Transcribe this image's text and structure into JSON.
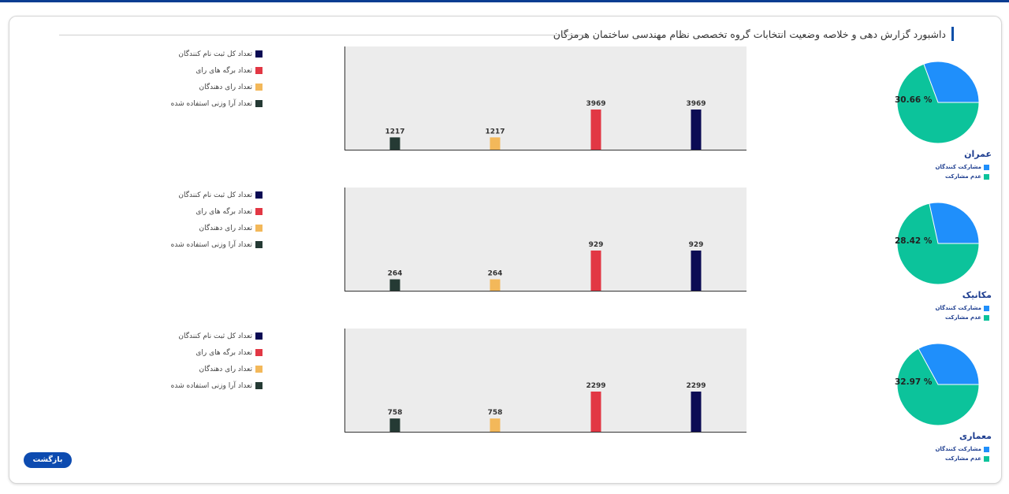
{
  "page": {
    "title": "داشبورد گزارش دهی و خلاصه وضعیت انتخابات گروه تخصصی نظام مهندسی ساختمان هرمزگان",
    "back_label": "بازگشت"
  },
  "colors": {
    "registered": "#0b0b54",
    "ballots": "#e23744",
    "voters": "#f3b85a",
    "weighted": "#253a34",
    "participants": "#1f8ffb",
    "non_participants": "#0cc39b",
    "plot_bg": "#ececec"
  },
  "legend_labels": {
    "registered": "تعداد کل ثبت نام کنندگان",
    "ballots": "تعداد برگه های رای",
    "voters": "تعداد رای دهندگان",
    "weighted": "تعداد آرا وزنی استفاده شده"
  },
  "pie_legend": {
    "participants": "مشارکت کنندگان",
    "non_participants": "عدم مشارکت"
  },
  "groups": [
    {
      "name": "عمران",
      "participation_label": "30.66 %",
      "participation_pct": 30.66,
      "bars": {
        "weighted": 1217,
        "voters": 1217,
        "ballots": 3969,
        "registered": 3969
      },
      "bar_labels": [
        "1217",
        "1217",
        "3969",
        "3969"
      ]
    },
    {
      "name": "مکانیک",
      "participation_label": "28.42 %",
      "participation_pct": 28.42,
      "bars": {
        "weighted": 264,
        "voters": 264,
        "ballots": 929,
        "registered": 929
      },
      "bar_labels": [
        "264",
        "264",
        "929",
        "929"
      ]
    },
    {
      "name": "معماری",
      "participation_label": "32.97 %",
      "participation_pct": 32.97,
      "bars": {
        "weighted": 758,
        "voters": 758,
        "ballots": 2299,
        "registered": 2299
      },
      "bar_labels": [
        "758",
        "758",
        "2299",
        "2299"
      ]
    }
  ]
}
